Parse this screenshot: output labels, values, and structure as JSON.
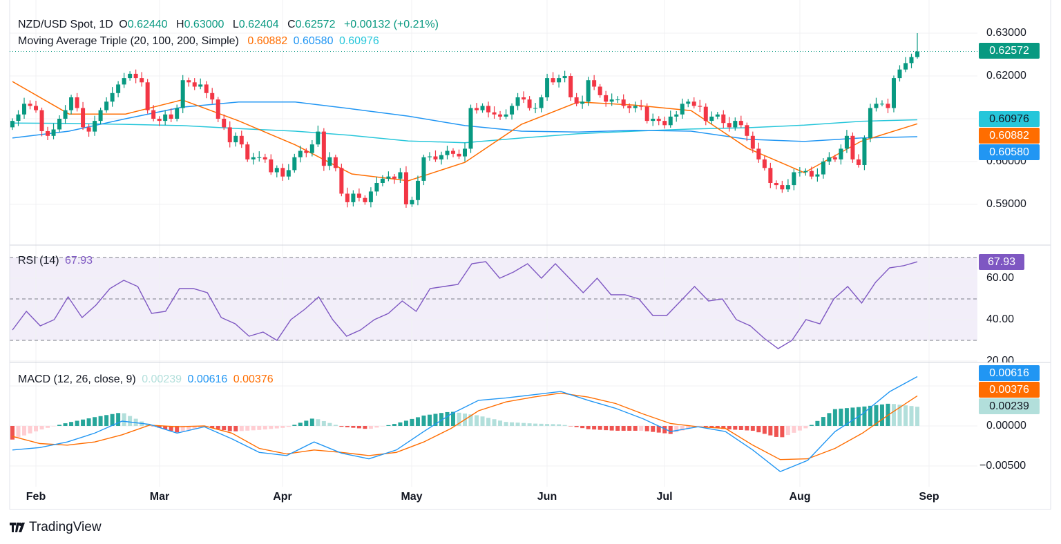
{
  "header": {
    "symbol": "NZD/USD Spot, 1D",
    "o_label": "O",
    "o": "0.62440",
    "h_label": "H",
    "h": "0.63000",
    "l_label": "L",
    "l": "0.62404",
    "c_label": "C",
    "c": "0.62572",
    "change": "+0.00132 (+0.21%)",
    "ma_title": "Moving Average Triple (20, 100, 200, Simple)",
    "ma20": "0.60882",
    "ma100": "0.60580",
    "ma200": "0.60976"
  },
  "rsi_legend": {
    "title": "RSI (14)",
    "value": "67.93"
  },
  "macd_legend": {
    "title": "MACD (12, 26, close, 9)",
    "hist": "0.00239",
    "macd": "0.00616",
    "signal": "0.00376"
  },
  "price_axis": [
    "0.63000",
    "0.62000",
    "0.60000",
    "0.59000"
  ],
  "price_tags": {
    "last": "0.62572",
    "ma200": "0.60976",
    "ma20": "0.60882",
    "ma100": "0.60580"
  },
  "rsi_axis": [
    "60.00",
    "40.00",
    "20.00"
  ],
  "rsi_tag": "67.93",
  "macd_axis": [
    "0.00000",
    "−0.00500"
  ],
  "macd_tags": {
    "macd": "0.00616",
    "signal": "0.00376",
    "hist": "0.00239"
  },
  "months": [
    "Feb",
    "Mar",
    "Apr",
    "May",
    "Jun",
    "Jul",
    "Aug",
    "Sep"
  ],
  "brand": "TradingView",
  "colors": {
    "up": "#089981",
    "down": "#f23645",
    "ma20": "#ff6d00",
    "ma100": "#2196f3",
    "ma200": "#26c6da",
    "rsi": "#7e57c2",
    "macd": "#2196f3",
    "signal": "#ff6d00",
    "hist_up": "#26a69a",
    "hist_up_light": "#b2dfdb",
    "hist_down": "#ef5350",
    "hist_down_light": "#ffcdd2"
  },
  "chart_data": [
    {
      "type": "candlestick",
      "title": "NZD/USD Spot, 1D",
      "ylim": [
        0.583,
        0.631
      ],
      "first_open": 0.608,
      "last_bar": {
        "open": 0.6244,
        "high": 0.63,
        "low": 0.62404,
        "close": 0.62572
      },
      "closes": [
        0.6095,
        0.611,
        0.6135,
        0.613,
        0.612,
        0.6071,
        0.606,
        0.6075,
        0.61,
        0.612,
        0.615,
        0.6125,
        0.608,
        0.607,
        0.6095,
        0.612,
        0.614,
        0.616,
        0.618,
        0.6195,
        0.6205,
        0.6195,
        0.6185,
        0.612,
        0.61,
        0.6095,
        0.611,
        0.61,
        0.6125,
        0.619,
        0.6185,
        0.6175,
        0.618,
        0.616,
        0.6145,
        0.61,
        0.608,
        0.6045,
        0.606,
        0.604,
        0.6005,
        0.601,
        0.601,
        0.6005,
        0.5975,
        0.5985,
        0.5965,
        0.598,
        0.601,
        0.6025,
        0.602,
        0.604,
        0.607,
        0.599,
        0.601,
        0.5985,
        0.5925,
        0.5905,
        0.5925,
        0.5915,
        0.5905,
        0.593,
        0.595,
        0.596,
        0.5965,
        0.596,
        0.5975,
        0.59,
        0.591,
        0.5955,
        0.601,
        0.6012,
        0.6005,
        0.6015,
        0.6025,
        0.6018,
        0.6012,
        0.603,
        0.6125,
        0.612,
        0.613,
        0.6115,
        0.611,
        0.6105,
        0.611,
        0.613,
        0.615,
        0.6145,
        0.6125,
        0.6125,
        0.615,
        0.6195,
        0.6185,
        0.6195,
        0.62,
        0.615,
        0.6135,
        0.614,
        0.619,
        0.6175,
        0.6155,
        0.614,
        0.6145,
        0.6145,
        0.613,
        0.6125,
        0.613,
        0.6128,
        0.6095,
        0.61,
        0.6095,
        0.6085,
        0.6105,
        0.611,
        0.6135,
        0.614,
        0.613,
        0.6128,
        0.6095,
        0.6105,
        0.611,
        0.609,
        0.608,
        0.6095,
        0.6085,
        0.606,
        0.603,
        0.6005,
        0.5985,
        0.595,
        0.5945,
        0.5935,
        0.5945,
        0.5975,
        0.5975,
        0.5978,
        0.5965,
        0.597,
        0.6,
        0.601,
        0.6005,
        0.603,
        0.606,
        0.6005,
        0.5992,
        0.6055,
        0.6125,
        0.6135,
        0.6135,
        0.6125,
        0.6195,
        0.6215,
        0.623,
        0.6244,
        0.62572
      ],
      "ma20": [
        0.6187,
        0.6111,
        0.6111,
        0.6144,
        0.6095,
        0.6039,
        0.5971,
        0.5955,
        0.5998,
        0.6087,
        0.6139,
        0.6132,
        0.6119,
        0.6031,
        0.5974,
        0.6047,
        0.60882
      ],
      "ma100": [
        0.6055,
        0.6071,
        0.61,
        0.6127,
        0.6139,
        0.6139,
        0.6123,
        0.6106,
        0.6084,
        0.6071,
        0.6069,
        0.6073,
        0.6071,
        0.6052,
        0.6047,
        0.6055,
        0.6058
      ],
      "ma200": [
        0.609,
        0.6089,
        0.6087,
        0.6084,
        0.6077,
        0.6071,
        0.6061,
        0.6048,
        0.6044,
        0.6055,
        0.6065,
        0.6071,
        0.6076,
        0.6079,
        0.6085,
        0.6094,
        0.60976
      ]
    },
    {
      "type": "line",
      "title": "RSI (14)",
      "ylim": [
        20,
        75
      ],
      "bands": [
        30,
        50,
        70
      ],
      "values": [
        35,
        44,
        37,
        40,
        51,
        41,
        47,
        55,
        59,
        56,
        43,
        44,
        55,
        55,
        53,
        41,
        38,
        32,
        34,
        30,
        40,
        45,
        51,
        40,
        32,
        35,
        40,
        43,
        49,
        44,
        55,
        56,
        57,
        67,
        68,
        60,
        63,
        67,
        60,
        67,
        60,
        53,
        60,
        52,
        52,
        50,
        42,
        42,
        49,
        56,
        49,
        50,
        40,
        37,
        31,
        26,
        30,
        40,
        38,
        50,
        56,
        48,
        58,
        65,
        66,
        67.93
      ]
    },
    {
      "type": "line",
      "title": "MACD (12, 26, close, 9)",
      "ylim": [
        -0.0068,
        0.0068
      ],
      "macd": [
        -0.003,
        -0.0027,
        -0.002,
        -0.0009,
        0.0006,
        0.0002,
        -0.0009,
        -0.0001,
        -0.0016,
        -0.0033,
        -0.0037,
        -0.002,
        -0.0034,
        -0.0041,
        -0.003,
        -0.0007,
        0.0015,
        0.0032,
        0.0035,
        0.0039,
        0.0043,
        0.0032,
        0.0022,
        0.0009,
        -0.0007,
        -0.0001,
        -0.0007,
        -0.003,
        -0.0057,
        -0.0043,
        -0.0007,
        0.0015,
        0.0043,
        0.00616
      ],
      "signal": [
        -0.0013,
        -0.0022,
        -0.0024,
        -0.002,
        -0.0011,
        0.0001,
        -0.0001,
        0.0,
        -0.0009,
        -0.0028,
        -0.0035,
        -0.003,
        -0.0033,
        -0.0037,
        -0.0033,
        -0.002,
        -0.0003,
        0.0019,
        0.003,
        0.0036,
        0.0041,
        0.0036,
        0.0028,
        0.0015,
        0.0003,
        -0.0001,
        -0.0003,
        -0.0024,
        -0.0042,
        -0.0041,
        -0.0028,
        -0.0009,
        0.0015,
        0.00376
      ]
    }
  ]
}
